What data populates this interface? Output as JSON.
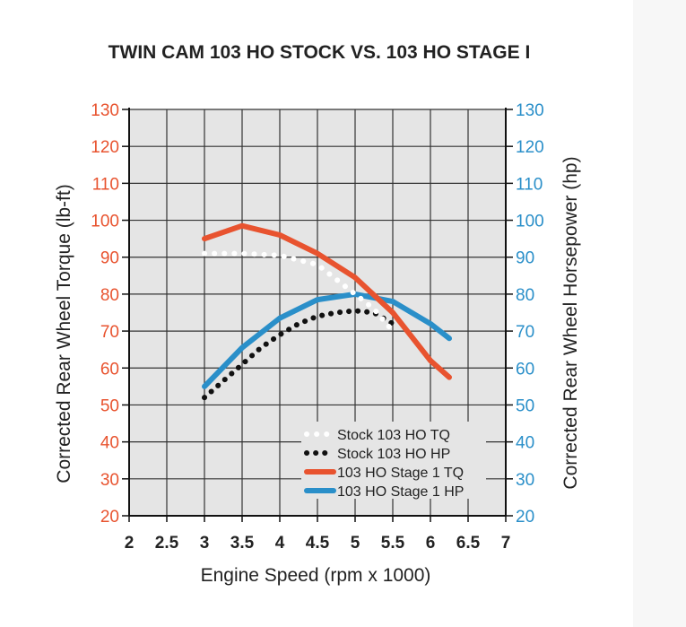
{
  "chart_data": {
    "type": "line",
    "title": "TWIN CAM 103 HO STOCK VS. 103 HO STAGE I",
    "xlabel": "Engine Speed (rpm x 1000)",
    "ylabel_left": "Corrected Rear Wheel Torque (lb-ft)",
    "ylabel_right": "Corrected Rear Wheel Horsepower (hp)",
    "xlim": [
      2,
      7
    ],
    "ylim": [
      20,
      130
    ],
    "x_ticks": [
      2,
      2.5,
      3,
      3.5,
      4,
      4.5,
      5,
      5.5,
      6,
      6.5,
      7
    ],
    "x_tick_labels": [
      "2",
      "2.5",
      "3",
      "3.5",
      "4",
      "4.5",
      "5",
      "5.5",
      "6",
      "6.5",
      "7"
    ],
    "y_ticks": [
      20,
      30,
      40,
      50,
      60,
      70,
      80,
      90,
      100,
      110,
      120,
      130
    ],
    "y_tick_labels": [
      "20",
      "30",
      "40",
      "50",
      "60",
      "70",
      "80",
      "90",
      "100",
      "110",
      "120",
      "130"
    ],
    "grid": true,
    "legend_position": "bottom-right",
    "colors": {
      "left_axis": "#e8532f",
      "right_axis": "#2a8fc9",
      "grid": "#333333",
      "plot_bg": "#e5e5e5"
    },
    "series": [
      {
        "name": "Stock 103 HO TQ",
        "style": "dotted-white",
        "color": "#ffffff",
        "x": [
          3.0,
          3.5,
          4.0,
          4.5,
          5.0,
          5.25,
          5.5
        ],
        "y": [
          91,
          91,
          90.5,
          88,
          80,
          76,
          70
        ]
      },
      {
        "name": "Stock 103 HO HP",
        "style": "dotted-black",
        "color": "#111111",
        "x": [
          3.0,
          3.25,
          3.5,
          3.75,
          4.0,
          4.25,
          4.5,
          4.75,
          5.0,
          5.25,
          5.5
        ],
        "y": [
          52,
          56.5,
          61,
          65.5,
          69,
          72,
          74,
          75,
          75.5,
          75,
          72
        ]
      },
      {
        "name": "103 HO Stage 1 TQ",
        "style": "solid",
        "color": "#e8532f",
        "x": [
          3.0,
          3.5,
          4.0,
          4.5,
          5.0,
          5.5,
          6.0,
          6.25
        ],
        "y": [
          95,
          98.5,
          96,
          91,
          84.5,
          75,
          62,
          57.5
        ]
      },
      {
        "name": "103 HO Stage 1 HP",
        "style": "solid",
        "color": "#2a8fc9",
        "x": [
          3.0,
          3.5,
          4.0,
          4.5,
          5.0,
          5.5,
          6.0,
          6.25
        ],
        "y": [
          55,
          65.5,
          73.5,
          78.5,
          80,
          78,
          72,
          68
        ]
      }
    ]
  }
}
